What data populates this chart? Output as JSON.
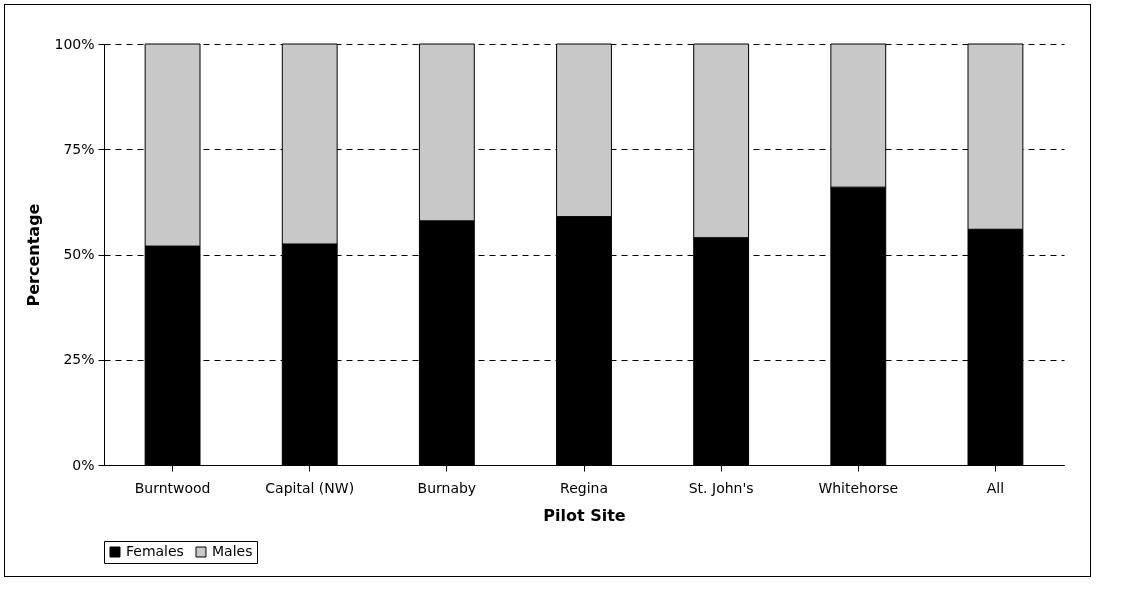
{
  "chart_data": {
    "type": "bar",
    "stacked": true,
    "xlabel": "Pilot Site",
    "ylabel": "Percentage",
    "categories": [
      "Burntwood",
      "Capital (NW)",
      "Burnaby",
      "Regina",
      "St. John's",
      "Whitehorse",
      "All"
    ],
    "series": [
      {
        "name": "Females",
        "color": "#000000",
        "values": [
          52,
          52.5,
          58,
          59,
          54,
          66,
          56
        ]
      },
      {
        "name": "Males",
        "color": "#c8c8c8",
        "values": [
          48,
          47.5,
          42,
          41,
          46,
          34,
          44
        ]
      }
    ],
    "ylim": [
      0,
      100
    ],
    "yticks": [
      {
        "value": 0,
        "label": "0%"
      },
      {
        "value": 25,
        "label": "25%"
      },
      {
        "value": 50,
        "label": "50%"
      },
      {
        "value": 75,
        "label": "75%"
      },
      {
        "value": 100,
        "label": "100%"
      }
    ],
    "grid": "y",
    "legend": "bottom"
  }
}
